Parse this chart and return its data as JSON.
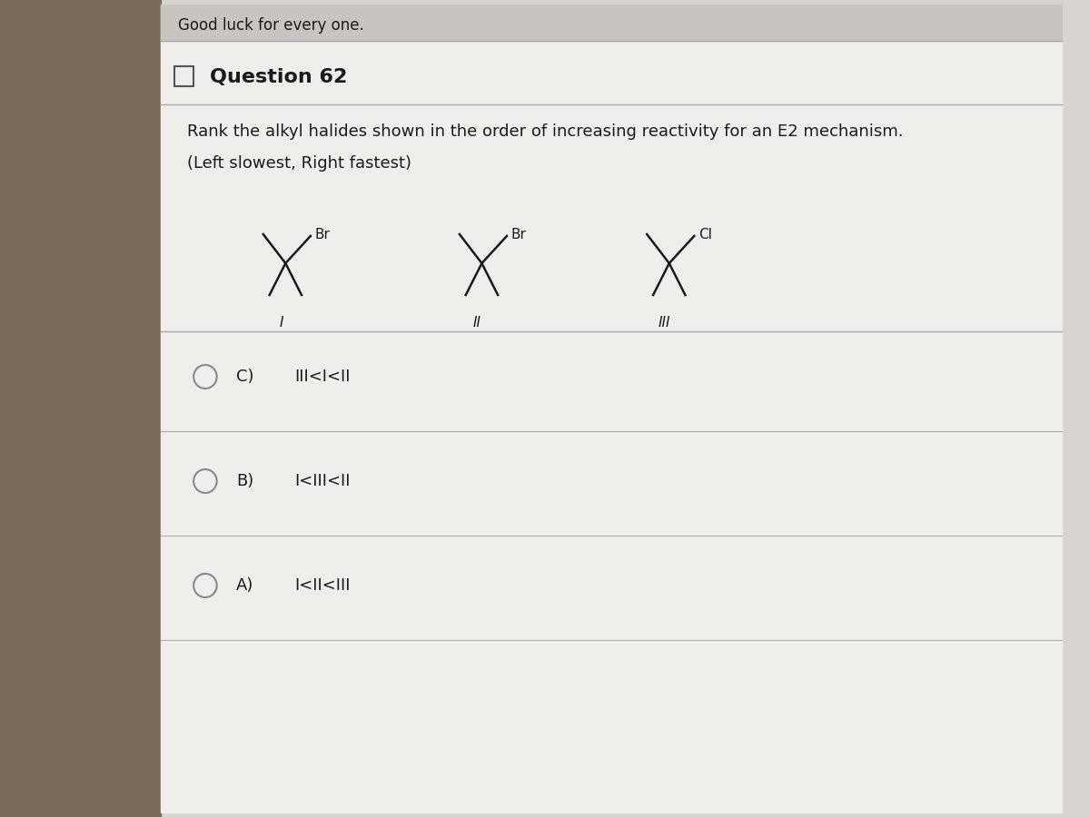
{
  "header_text": "Good luck for every one.",
  "question_number": "Question 62",
  "question_text": "Rank the alkyl halides shown in the order of increasing reactivity for an E2 mechanism.",
  "subtext": "(Left slowest, Right fastest)",
  "molecule_labels": [
    "I",
    "II",
    "III"
  ],
  "molecule_halogens": [
    "Br",
    "Br",
    "Cl"
  ],
  "answer_options": [
    {
      "label": "C)",
      "text": "III<I<II"
    },
    {
      "label": "B)",
      "text": "I<III<II"
    },
    {
      "label": "A)",
      "text": "I<II<III"
    }
  ],
  "bg_color": "#d8d4cf",
  "panel_color": "#f0eeeb",
  "text_color": "#1a1a1a",
  "header_color": "#c8c4bf",
  "molecule_color": "#1a1a1a",
  "radio_color": "#888888",
  "font_size_question": 13,
  "font_size_answer": 13,
  "font_size_header": 12,
  "font_size_molecule": 11
}
